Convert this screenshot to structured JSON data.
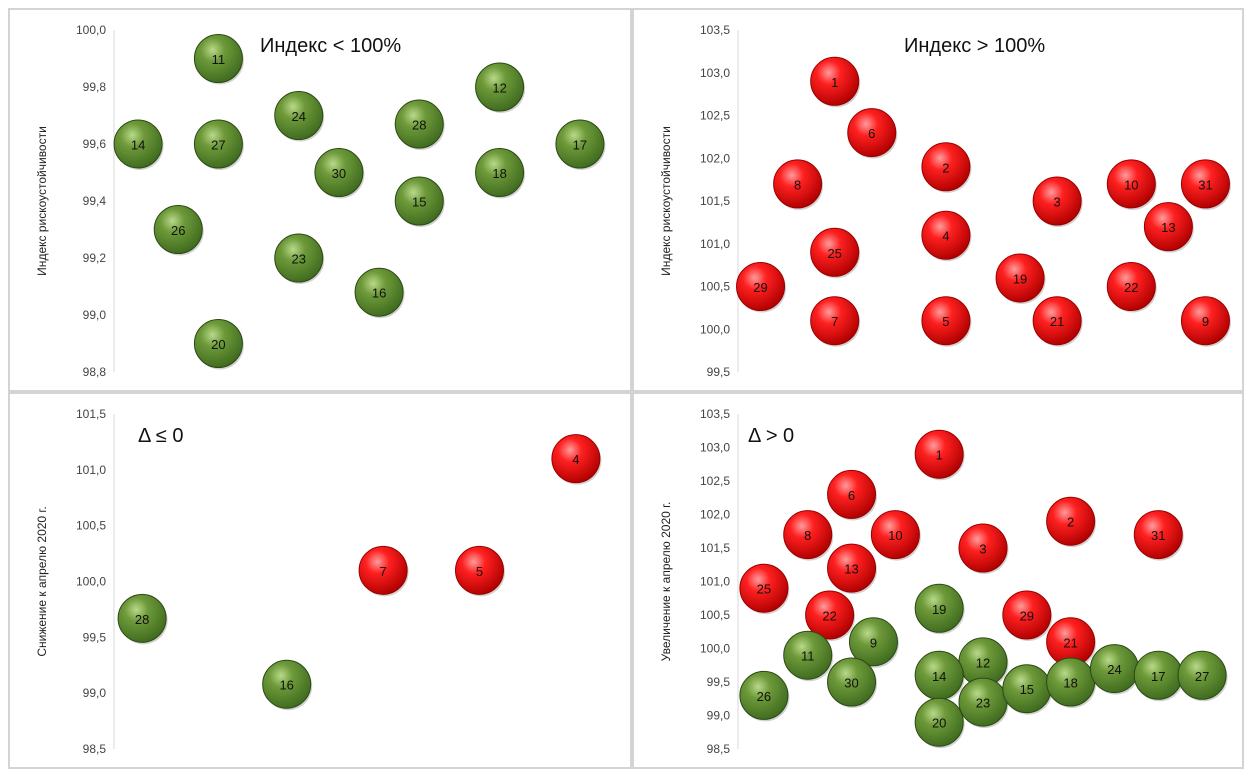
{
  "colors": {
    "green": "#3f6b1f",
    "red": "#e30000",
    "axis": "#d9d9d9"
  },
  "chart_data": [
    {
      "type": "scatter",
      "title": "Индекс < 100%",
      "ylabel": "Индекс рискоустойчивости",
      "xlabel": "",
      "ylim": [
        98.8,
        100.0
      ],
      "yticks": [
        "100,0",
        "99,8",
        "99,6",
        "99,4",
        "99,2",
        "99,0",
        "98,8"
      ],
      "points": [
        {
          "label": "11",
          "x": 3,
          "y": 99.9,
          "color": "green"
        },
        {
          "label": "14",
          "x": 1,
          "y": 99.6,
          "color": "green"
        },
        {
          "label": "27",
          "x": 3,
          "y": 99.6,
          "color": "green"
        },
        {
          "label": "24",
          "x": 5,
          "y": 99.7,
          "color": "green"
        },
        {
          "label": "30",
          "x": 6,
          "y": 99.5,
          "color": "green"
        },
        {
          "label": "28",
          "x": 8,
          "y": 99.67,
          "color": "green"
        },
        {
          "label": "15",
          "x": 8,
          "y": 99.4,
          "color": "green"
        },
        {
          "label": "12",
          "x": 10,
          "y": 99.8,
          "color": "green"
        },
        {
          "label": "18",
          "x": 10,
          "y": 99.5,
          "color": "green"
        },
        {
          "label": "17",
          "x": 12,
          "y": 99.6,
          "color": "green"
        },
        {
          "label": "26",
          "x": 2,
          "y": 99.3,
          "color": "green"
        },
        {
          "label": "23",
          "x": 5,
          "y": 99.2,
          "color": "green"
        },
        {
          "label": "16",
          "x": 7,
          "y": 99.08,
          "color": "green"
        },
        {
          "label": "20",
          "x": 3,
          "y": 98.9,
          "color": "green"
        }
      ]
    },
    {
      "type": "scatter",
      "title": "Индекс > 100%",
      "ylabel": "Индекс рискоустойчивости",
      "xlabel": "",
      "ylim": [
        99.5,
        103.5
      ],
      "yticks": [
        "103,5",
        "103,0",
        "102,5",
        "102,0",
        "101,5",
        "101,0",
        "100,5",
        "100,0",
        "99,5"
      ],
      "points": [
        {
          "label": "1",
          "x": 3,
          "y": 102.9,
          "color": "red"
        },
        {
          "label": "6",
          "x": 4,
          "y": 102.3,
          "color": "red"
        },
        {
          "label": "2",
          "x": 6,
          "y": 101.9,
          "color": "red"
        },
        {
          "label": "8",
          "x": 2,
          "y": 101.7,
          "color": "red"
        },
        {
          "label": "3",
          "x": 9,
          "y": 101.5,
          "color": "red"
        },
        {
          "label": "10",
          "x": 11,
          "y": 101.7,
          "color": "red"
        },
        {
          "label": "31",
          "x": 13,
          "y": 101.7,
          "color": "red"
        },
        {
          "label": "13",
          "x": 12,
          "y": 101.2,
          "color": "red"
        },
        {
          "label": "4",
          "x": 6,
          "y": 101.1,
          "color": "red"
        },
        {
          "label": "25",
          "x": 3,
          "y": 100.9,
          "color": "red"
        },
        {
          "label": "19",
          "x": 8,
          "y": 100.6,
          "color": "red"
        },
        {
          "label": "22",
          "x": 11,
          "y": 100.5,
          "color": "red"
        },
        {
          "label": "29",
          "x": 1,
          "y": 100.5,
          "color": "red"
        },
        {
          "label": "7",
          "x": 3,
          "y": 100.1,
          "color": "red"
        },
        {
          "label": "5",
          "x": 6,
          "y": 100.1,
          "color": "red"
        },
        {
          "label": "21",
          "x": 9,
          "y": 100.1,
          "color": "red"
        },
        {
          "label": "9",
          "x": 13,
          "y": 100.1,
          "color": "red"
        }
      ]
    },
    {
      "type": "scatter",
      "title": "Δ ≤ 0",
      "ylabel": "Снижение к апрелю 2020 г.",
      "xlabel": "",
      "ylim": [
        98.5,
        101.5
      ],
      "yticks": [
        "101,5",
        "101,0",
        "100,5",
        "100,0",
        "99,5",
        "99,0",
        "98,5"
      ],
      "points": [
        {
          "label": "28",
          "x": 1,
          "y": 99.67,
          "color": "green"
        },
        {
          "label": "16",
          "x": 4,
          "y": 99.08,
          "color": "green"
        },
        {
          "label": "7",
          "x": 6,
          "y": 100.1,
          "color": "red"
        },
        {
          "label": "5",
          "x": 8,
          "y": 100.1,
          "color": "red"
        },
        {
          "label": "4",
          "x": 10,
          "y": 101.1,
          "color": "red"
        }
      ]
    },
    {
      "type": "scatter",
      "title": "Δ > 0",
      "ylabel": "Увеличение к апрелю 2020 г.",
      "xlabel": "",
      "ylim": [
        98.5,
        103.5
      ],
      "yticks": [
        "103,5",
        "103,0",
        "102,5",
        "102,0",
        "101,5",
        "101,0",
        "100,5",
        "100,0",
        "99,5",
        "99,0",
        "98,5"
      ],
      "points": [
        {
          "label": "1",
          "x": 5,
          "y": 102.9,
          "color": "red"
        },
        {
          "label": "6",
          "x": 3,
          "y": 102.3,
          "color": "red"
        },
        {
          "label": "2",
          "x": 8,
          "y": 101.9,
          "color": "red"
        },
        {
          "label": "31",
          "x": 10,
          "y": 101.7,
          "color": "red"
        },
        {
          "label": "8",
          "x": 2,
          "y": 101.7,
          "color": "red"
        },
        {
          "label": "10",
          "x": 4,
          "y": 101.7,
          "color": "red"
        },
        {
          "label": "3",
          "x": 6,
          "y": 101.5,
          "color": "red"
        },
        {
          "label": "13",
          "x": 3,
          "y": 101.2,
          "color": "red"
        },
        {
          "label": "25",
          "x": 1,
          "y": 100.9,
          "color": "red"
        },
        {
          "label": "22",
          "x": 2.5,
          "y": 100.5,
          "color": "red"
        },
        {
          "label": "29",
          "x": 7,
          "y": 100.5,
          "color": "red"
        },
        {
          "label": "21",
          "x": 8,
          "y": 100.1,
          "color": "red"
        },
        {
          "label": "19",
          "x": 5,
          "y": 100.6,
          "color": "green"
        },
        {
          "label": "9",
          "x": 3.5,
          "y": 100.1,
          "color": "green"
        },
        {
          "label": "11",
          "x": 2,
          "y": 99.9,
          "color": "green"
        },
        {
          "label": "12",
          "x": 6,
          "y": 99.8,
          "color": "green"
        },
        {
          "label": "30",
          "x": 3,
          "y": 99.5,
          "color": "green"
        },
        {
          "label": "14",
          "x": 5,
          "y": 99.6,
          "color": "green"
        },
        {
          "label": "26",
          "x": 1,
          "y": 99.3,
          "color": "green"
        },
        {
          "label": "23",
          "x": 6,
          "y": 99.2,
          "color": "green"
        },
        {
          "label": "15",
          "x": 7,
          "y": 99.4,
          "color": "green"
        },
        {
          "label": "18",
          "x": 8,
          "y": 99.5,
          "color": "green"
        },
        {
          "label": "24",
          "x": 9,
          "y": 99.7,
          "color": "green"
        },
        {
          "label": "17",
          "x": 10,
          "y": 99.6,
          "color": "green"
        },
        {
          "label": "27",
          "x": 11,
          "y": 99.6,
          "color": "green"
        },
        {
          "label": "20",
          "x": 5,
          "y": 98.9,
          "color": "green"
        }
      ]
    }
  ]
}
